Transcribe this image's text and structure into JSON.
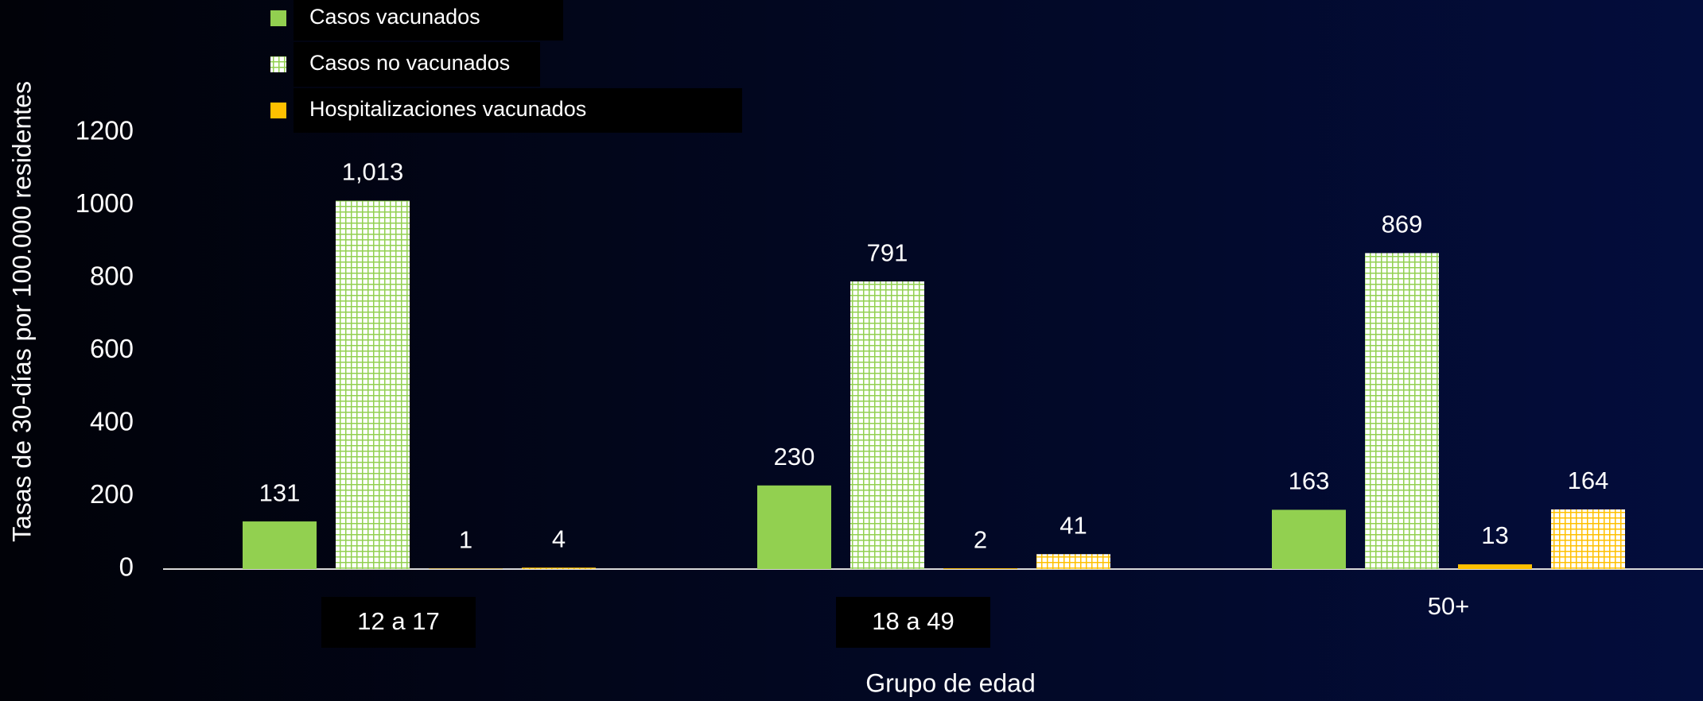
{
  "chart_data": {
    "type": "bar",
    "x_label": "Grupo de edad",
    "y_label": "Tasas de 30-días por 100.000 residentes",
    "categories": [
      "12 a 17",
      "18 a 49",
      "50+"
    ],
    "series": [
      {
        "name": "Casos vacunados",
        "color": "#92d050",
        "hatch": false,
        "values": [
          131,
          230,
          163
        ]
      },
      {
        "name": "Casos no vacunados",
        "color": "#92d050",
        "hatch": true,
        "values": [
          1013,
          791,
          869
        ],
        "value_labels": [
          "1,013",
          "791",
          "869"
        ]
      },
      {
        "name": "Hospitalizaciones vacunados",
        "color": "#ffc000",
        "hatch": false,
        "values": [
          1,
          2,
          13
        ]
      },
      {
        "color": "#ffc000",
        "hatch": true,
        "values": [
          4,
          41,
          164
        ]
      }
    ],
    "ylim": [
      0,
      1200
    ],
    "yticks": [
      0,
      200,
      400,
      600,
      800,
      1000,
      1200
    ],
    "grid": false,
    "legend": "top-left"
  }
}
